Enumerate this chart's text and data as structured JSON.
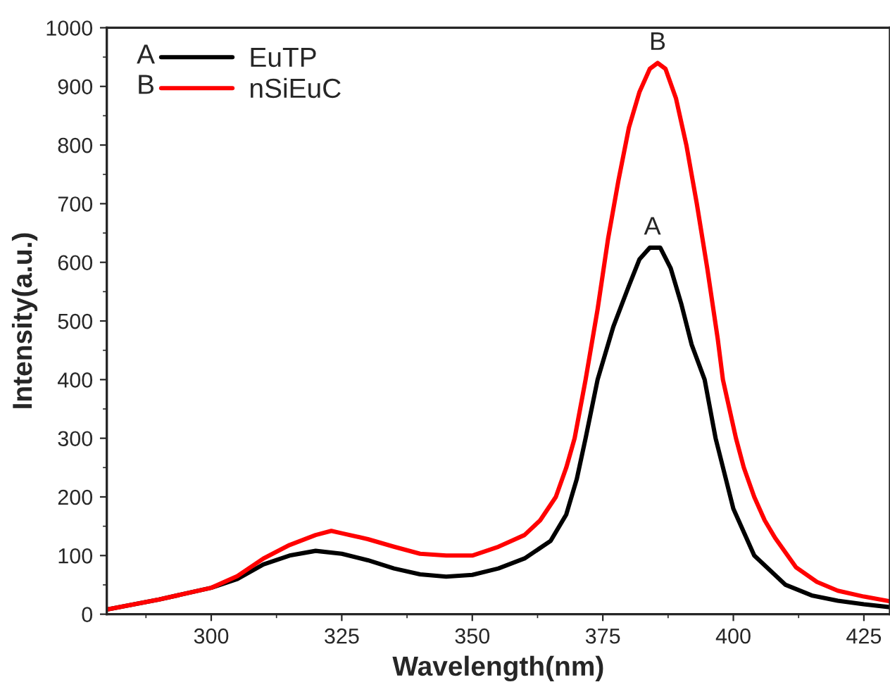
{
  "chart_data": {
    "type": "line",
    "xlabel": "Wavelength(nm)",
    "ylabel": "Intensity(a.u.)",
    "xlim": [
      280,
      430
    ],
    "xticks": [
      300,
      325,
      350,
      375,
      400,
      425
    ],
    "ylim": [
      0,
      1000
    ],
    "yticks": [
      0,
      100,
      200,
      300,
      400,
      500,
      600,
      700,
      800,
      900,
      1000
    ],
    "grid": false,
    "legend": "top left",
    "marker": "none",
    "line_style": "solid",
    "series": [
      {
        "name": "EuTP",
        "color": "#000000",
        "x": [
          280,
          290,
          300,
          305,
          310,
          315,
          320,
          325,
          330,
          335,
          340,
          345,
          350,
          355,
          360,
          365,
          368,
          370,
          371.7,
          374,
          377,
          380,
          382,
          384,
          386,
          388,
          390,
          392,
          394.5,
          396.6,
          400,
          404,
          410,
          415,
          420,
          425,
          430
        ],
        "values": [
          8,
          25,
          45,
          60,
          85,
          100,
          108,
          103,
          92,
          78,
          68,
          64,
          67,
          78,
          95,
          125,
          170,
          230,
          300,
          400,
          490,
          560,
          605,
          625,
          625,
          590,
          530,
          460,
          400,
          300,
          180,
          100,
          50,
          32,
          23,
          17,
          12
        ]
      },
      {
        "name": "nSiEuC",
        "color": "#ff0000",
        "x": [
          280,
          290,
          300,
          305,
          310,
          315,
          320,
          323,
          325,
          330,
          335,
          340,
          345,
          350,
          355,
          360,
          363,
          366,
          368,
          369.6,
          371.7,
          374,
          376,
          378,
          380,
          382,
          384,
          385.5,
          387,
          389,
          391,
          393,
          395,
          397,
          398,
          400.5,
          402,
          404,
          406,
          408,
          412,
          416,
          420,
          425,
          430
        ],
        "values": [
          8,
          25,
          45,
          65,
          95,
          118,
          135,
          142,
          138,
          128,
          115,
          103,
          100,
          100,
          115,
          135,
          160,
          200,
          250,
          300,
          400,
          520,
          640,
          740,
          830,
          890,
          930,
          940,
          930,
          880,
          800,
          700,
          590,
          470,
          400,
          300,
          250,
          200,
          160,
          130,
          80,
          55,
          40,
          30,
          22
        ]
      }
    ],
    "annotations": [
      {
        "text": "A",
        "x": 384.5,
        "y": 625
      },
      {
        "text": "B",
        "x": 385.5,
        "y": 940
      },
      "A",
      "B"
    ]
  }
}
